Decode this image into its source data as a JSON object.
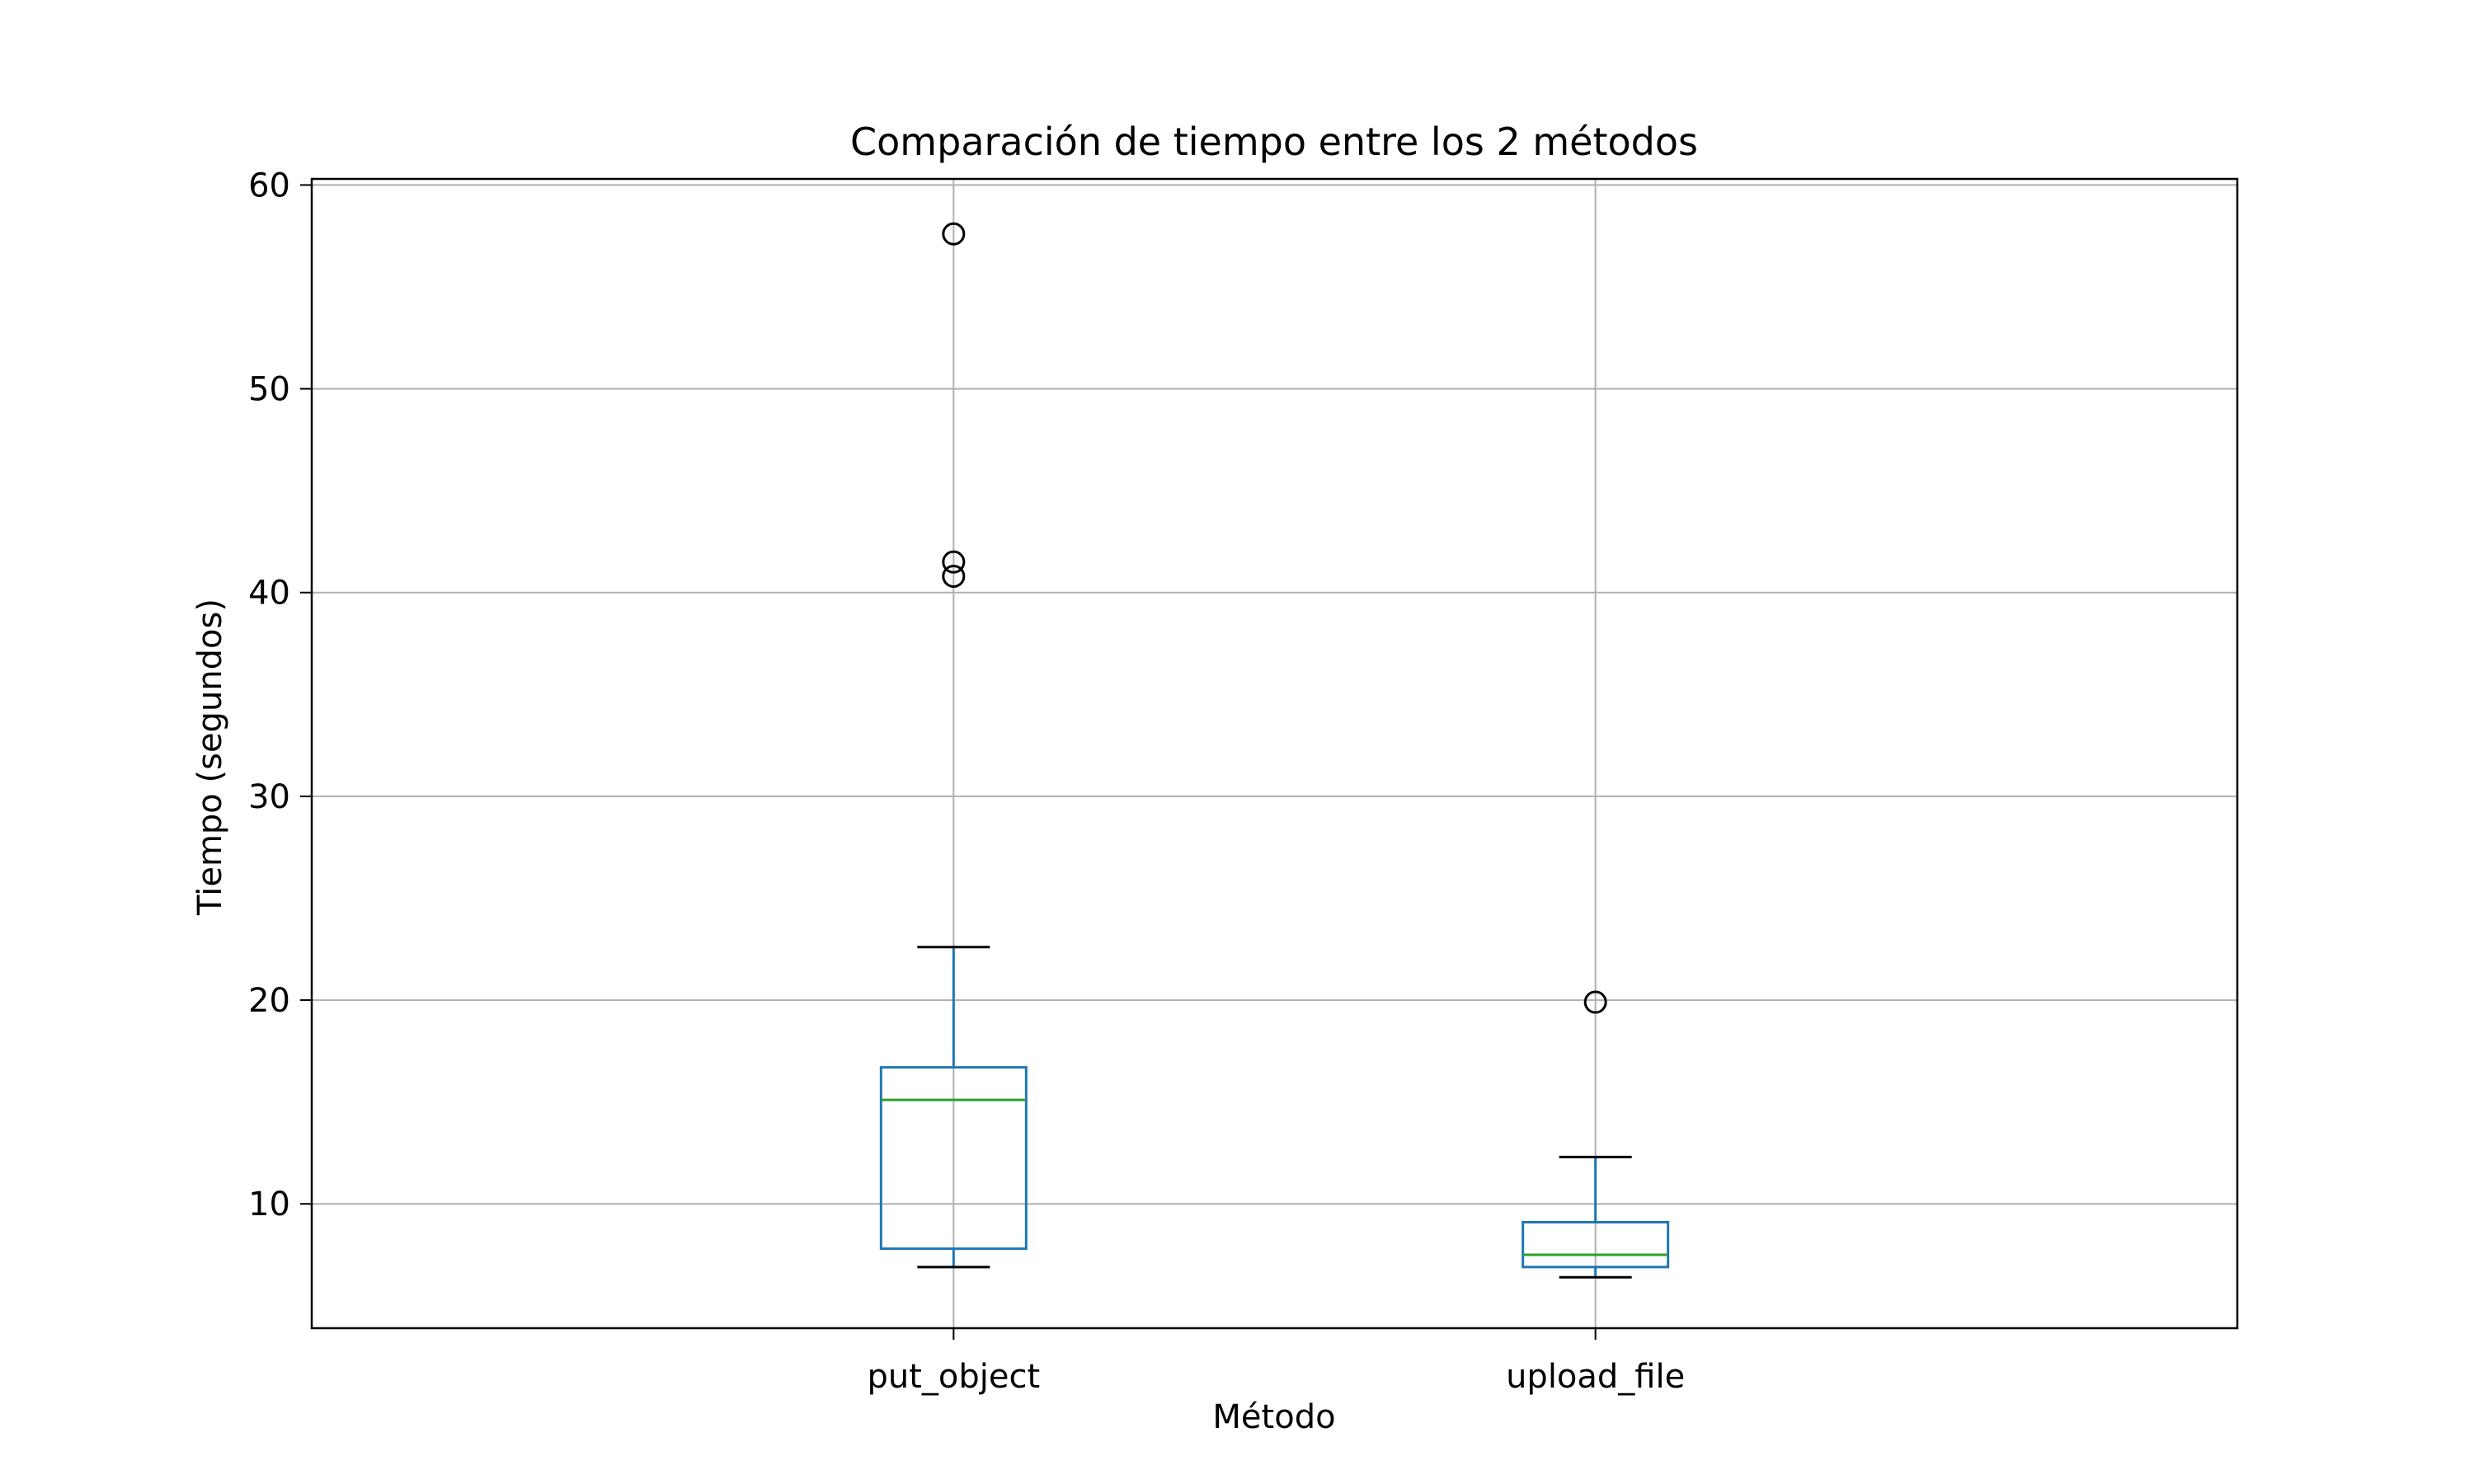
{
  "chart_data": {
    "type": "box",
    "title": "Comparación de tiempo entre los 2 métodos",
    "xlabel": "Método",
    "ylabel": "Tiempo (segundos)",
    "categories": [
      "put_object",
      "upload_file"
    ],
    "boxes": [
      {
        "name": "put_object",
        "whisker_low": 6.9,
        "q1": 7.8,
        "median": 15.1,
        "q3": 16.7,
        "whisker_high": 22.6,
        "outliers": [
          40.8,
          41.5,
          57.6
        ]
      },
      {
        "name": "upload_file",
        "whisker_low": 6.4,
        "q1": 6.9,
        "median": 7.5,
        "q3": 9.1,
        "whisker_high": 12.3,
        "outliers": [
          19.9
        ]
      }
    ],
    "ylim": [
      3.9,
      60.3
    ],
    "yticks": [
      10,
      20,
      30,
      40,
      50,
      60
    ],
    "grid": true,
    "colors": {
      "box": "#1f77b4",
      "median": "#2ca02c",
      "whisker_cap": "#000000",
      "outlier": "#000000",
      "grid": "#b0b0b0"
    }
  }
}
